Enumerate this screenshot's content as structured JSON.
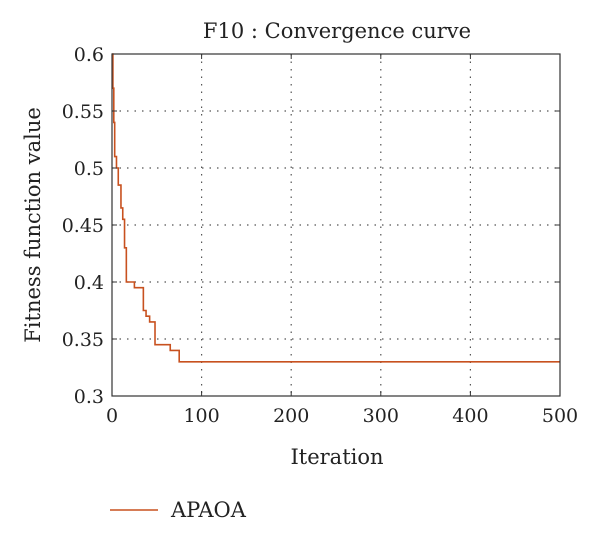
{
  "chart_data": {
    "type": "line",
    "title": "F10 : Convergence curve",
    "xlabel": "Iteration",
    "ylabel": "Fitness function value",
    "xlim": [
      0,
      500
    ],
    "ylim": [
      0.3,
      0.6
    ],
    "x_ticks": [
      0,
      100,
      200,
      300,
      400,
      500
    ],
    "y_ticks": [
      0.3,
      0.35,
      0.4,
      0.45,
      0.5,
      0.55,
      0.6
    ],
    "x_tick_labels": [
      "0",
      "100",
      "200",
      "300",
      "400",
      "500"
    ],
    "y_tick_labels": [
      "0.3",
      "0.35",
      "0.4",
      "0.45",
      "0.5",
      "0.55",
      "0.6"
    ],
    "grid": true,
    "legend_position": "bottom-left",
    "series": [
      {
        "name": "APAOA",
        "color": "#c8511f",
        "step": true,
        "x": [
          0,
          1,
          2,
          3,
          5,
          7,
          10,
          12,
          14,
          16,
          18,
          25,
          35,
          38,
          42,
          48,
          55,
          65,
          75,
          500
        ],
        "y": [
          0.6,
          0.57,
          0.54,
          0.51,
          0.5,
          0.485,
          0.465,
          0.455,
          0.43,
          0.4,
          0.4,
          0.395,
          0.375,
          0.37,
          0.365,
          0.345,
          0.345,
          0.34,
          0.33,
          0.33
        ]
      }
    ]
  }
}
